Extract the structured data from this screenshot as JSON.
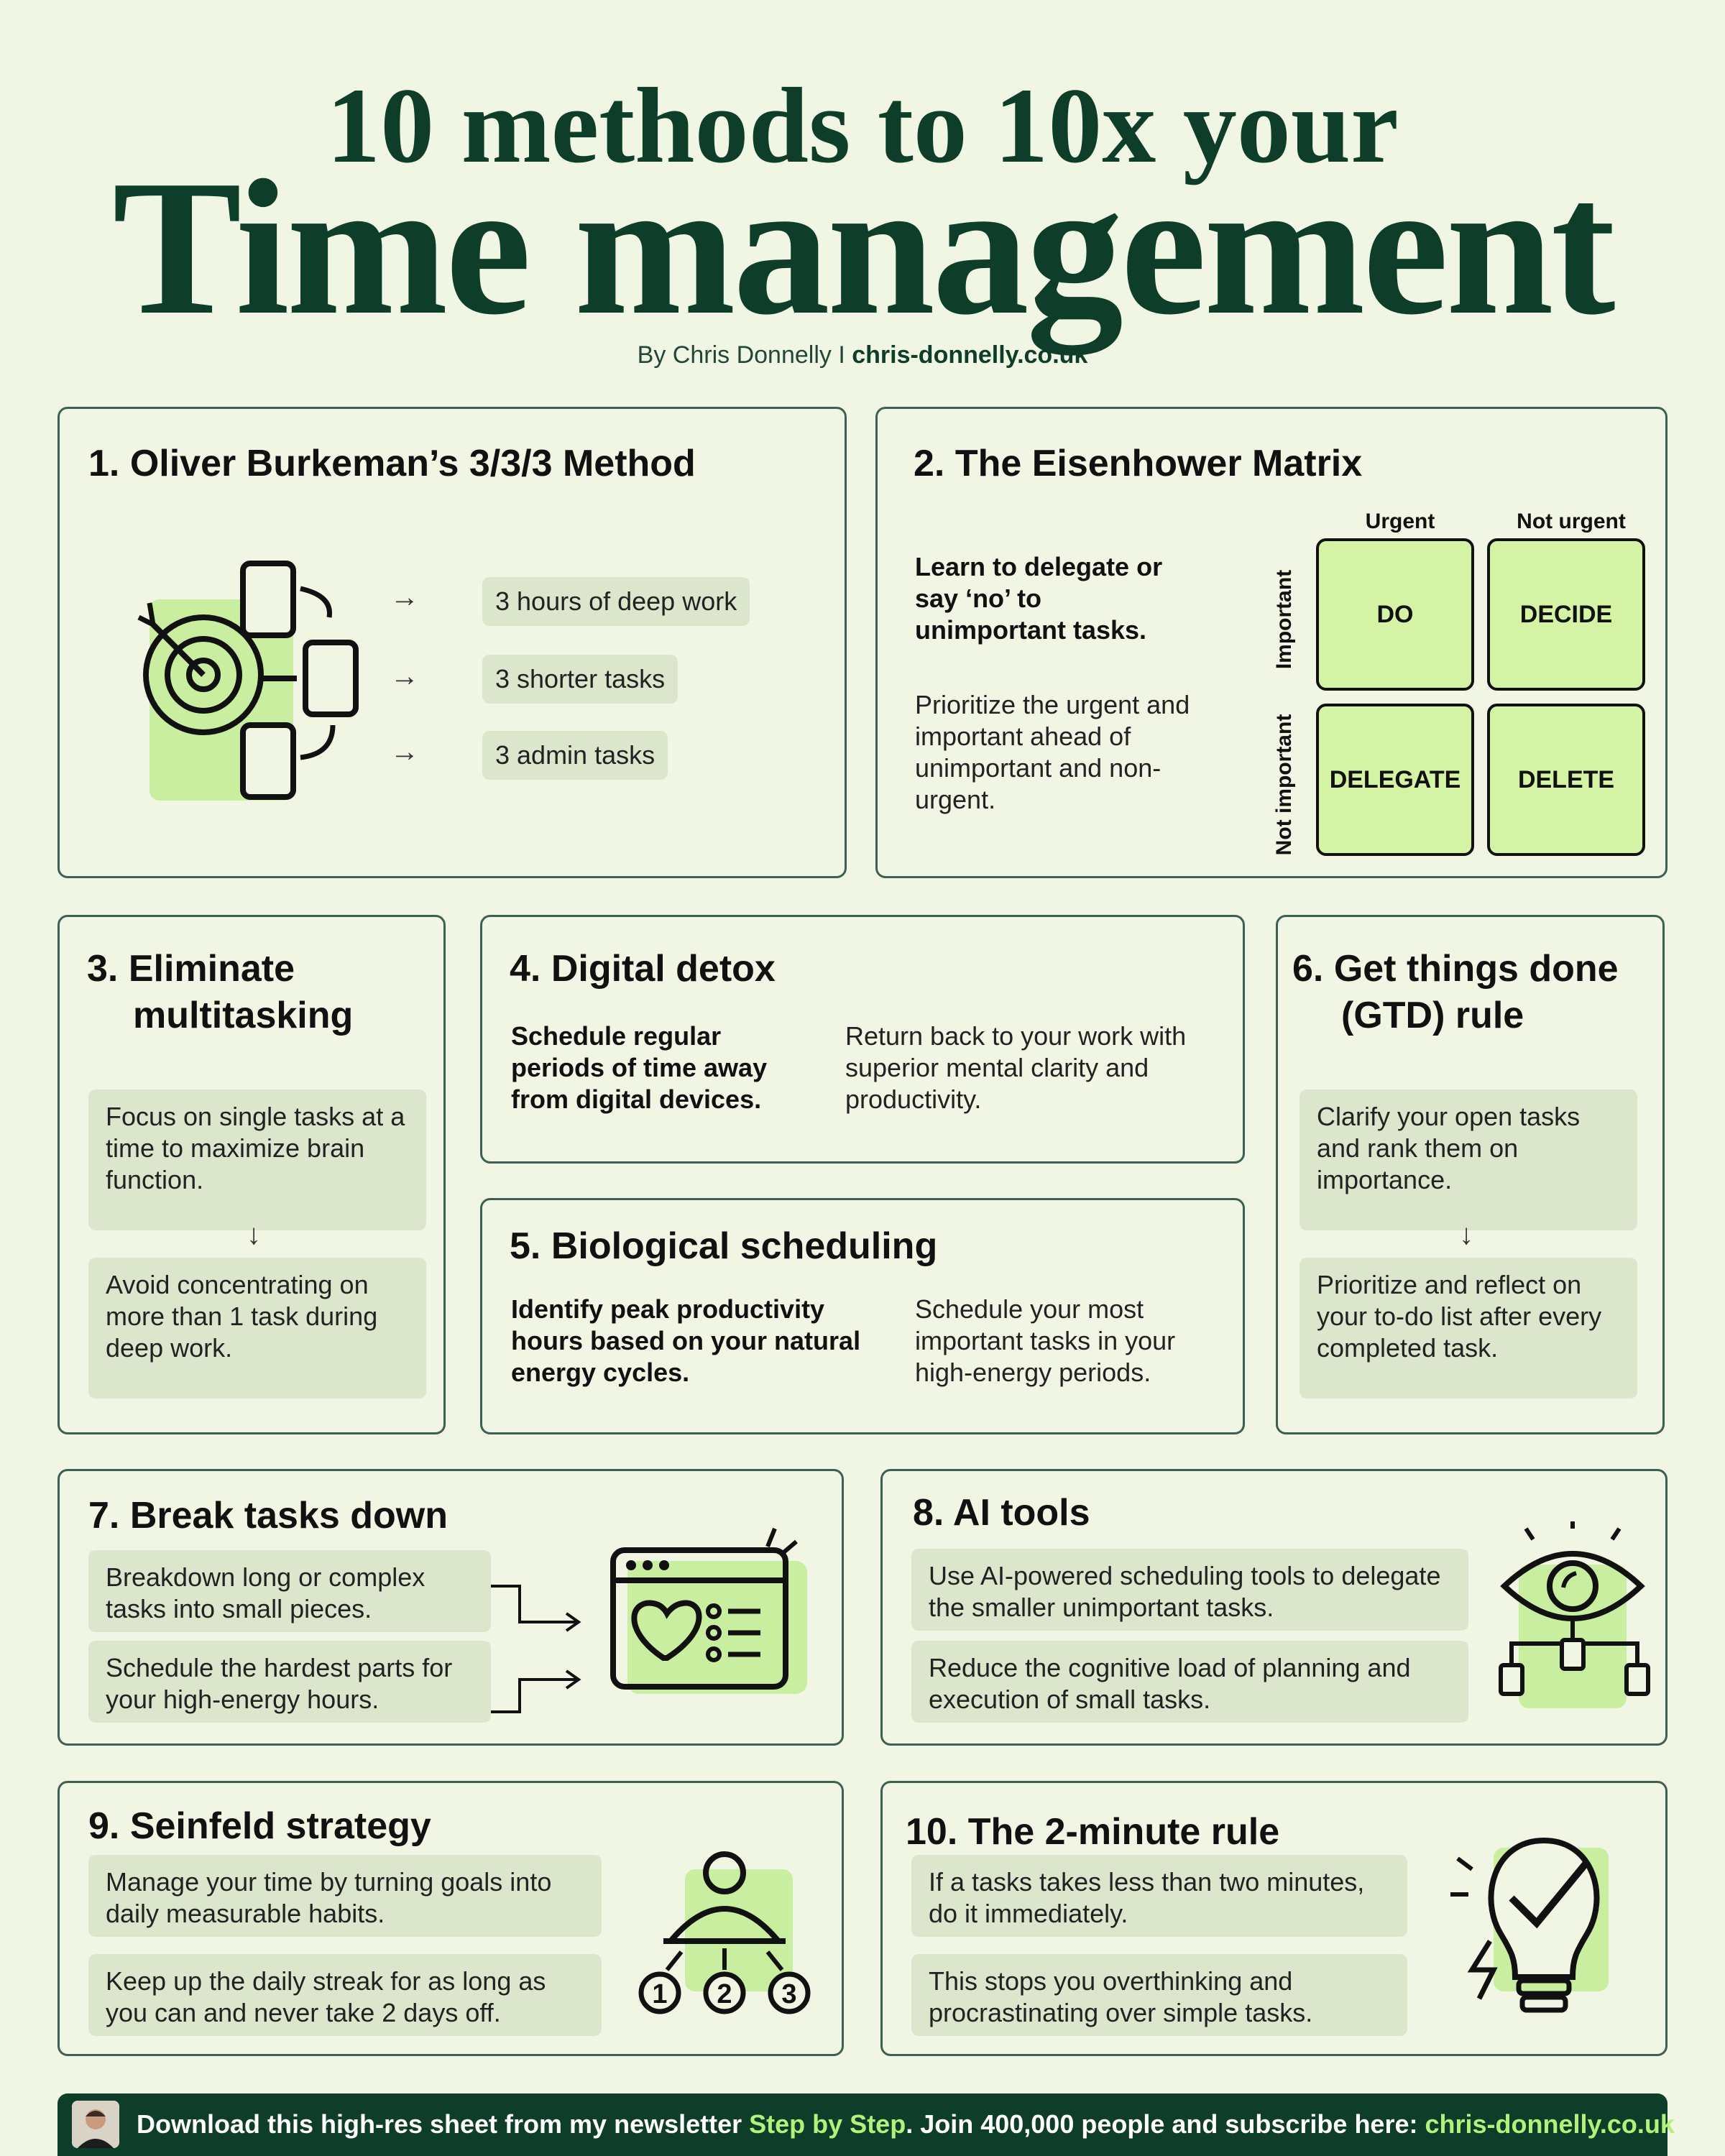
{
  "header": {
    "title_top": "10 methods to 10x your",
    "title_main": "Time management",
    "byline_prefix": "By Chris Donnelly I ",
    "byline_site": "chris-donnelly.co.uk"
  },
  "cards": {
    "c1": {
      "title": "1. Oliver Burkeman’s 3/3/3 Method",
      "items": [
        "3 hours of deep work",
        "3 shorter tasks",
        "3 admin tasks"
      ]
    },
    "c2": {
      "title": "2. The Eisenhower Matrix",
      "bold": "Learn to delegate or say ‘no’ to unimportant tasks.",
      "text": "Prioritize the urgent and important ahead of unimportant and non-urgent.",
      "col_headers": [
        "Urgent",
        "Not urgent"
      ],
      "row_headers": [
        "Important",
        "Not important"
      ],
      "cells": [
        "DO",
        "DECIDE",
        "DELEGATE",
        "DELETE"
      ]
    },
    "c3": {
      "title_line1": "3. Eliminate",
      "title_line2": "multitasking",
      "pill1": "Focus on single tasks at a time to maximize brain function.",
      "pill2": "Avoid concentrating on more than 1 task  during deep work."
    },
    "c4": {
      "title": "4. Digital detox",
      "bold": "Schedule regular periods of time away from digital devices.",
      "text": "Return back to your work with superior mental clarity and productivity."
    },
    "c5": {
      "title": "5. Biological scheduling",
      "bold": "Identify peak productivity hours based on your natural energy cycles.",
      "text": "Schedule your most important tasks in your high-energy periods."
    },
    "c6": {
      "title_line1": "6. Get things done",
      "title_line2": "(GTD) rule",
      "pill1": "Clarify your open tasks and rank them on importance.",
      "pill2": "Prioritize and reflect on your to-do list after every completed task."
    },
    "c7": {
      "title": "7. Break tasks down",
      "pill1": "Breakdown long or complex tasks into small pieces.",
      "pill2": "Schedule the hardest parts for your high-energy hours."
    },
    "c8": {
      "title": "8. AI tools",
      "pill1": "Use AI-powered scheduling tools to delegate the smaller unimportant tasks.",
      "pill2": "Reduce the cognitive load of planning and execution of small tasks."
    },
    "c9": {
      "title": "9. Seinfeld strategy",
      "pill1": "Manage your time by turning goals into daily measurable habits.",
      "pill2": "Keep up the daily streak for as long as you can and never take 2 days off.",
      "numbers": [
        "1",
        "2",
        "3"
      ]
    },
    "c10": {
      "title": "10. The 2-minute rule",
      "pill1": "If a tasks takes less than two minutes, do it immediately.",
      "pill2": "This stops you overthinking and procrastinating over simple tasks."
    }
  },
  "footer": {
    "text1": "Download this high-res sheet from my newsletter ",
    "highlight1": "Step by Step",
    "text2": ". Join 400,000 people and subscribe here: ",
    "highlight2": "chris-donnelly.co.uk"
  },
  "icons": {
    "arrow": "→",
    "down_arrow": "↓"
  },
  "colors": {
    "background": "#f1f5e4",
    "dark_green": "#0e3d2a",
    "light_green": "#d4f3a5",
    "pill": "#dce6cc"
  }
}
